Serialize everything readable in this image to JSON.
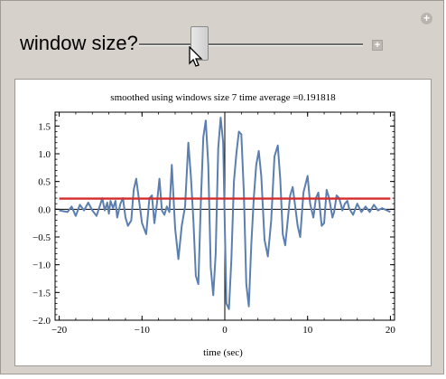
{
  "control": {
    "label": "window size?",
    "slider_fraction": 0.25
  },
  "chart_data": {
    "type": "line",
    "title": "smoothed using windows size 7 time average =0.191818",
    "xlabel": "time (sec)",
    "ylabel": "",
    "xlim": [
      -20.5,
      20.5
    ],
    "ylim": [
      -2.0,
      1.75
    ],
    "xticks": [
      -20,
      -10,
      0,
      10,
      20
    ],
    "xtick_labels": [
      "−20",
      "−10",
      "0",
      "10",
      "20"
    ],
    "yticks": [
      1.5,
      1.0,
      0.5,
      0.0,
      -0.5,
      -1.0,
      -1.5,
      -2.0
    ],
    "ytick_labels": [
      "1.5",
      "1.0",
      "0.5",
      "0.0",
      "−0.5",
      "−1.0",
      "−1.5",
      "−2.0"
    ],
    "average_value": 0.191818,
    "average_color": "#d42b2b",
    "series_color": "#5b7fb0",
    "series": [
      {
        "x": [
          -20,
          -19,
          -18.5,
          -18,
          -17.5,
          -17,
          -16.5,
          -16,
          -15.5,
          -15,
          -14.8,
          -14.5,
          -14.2,
          -14,
          -13.8,
          -13.5,
          -13.2,
          -13,
          -12.6,
          -12.3,
          -12,
          -11.7,
          -11.3,
          -11,
          -10.7,
          -10.3,
          -10,
          -9.5,
          -9.1,
          -8.8,
          -8.5,
          -8.2,
          -7.9,
          -7.6,
          -7.3,
          -7,
          -6.7,
          -6.4,
          -6,
          -5.6,
          -5.2,
          -4.8,
          -4.4,
          -4.1,
          -3.8,
          -3.5,
          -3.2,
          -2.9,
          -2.6,
          -2.3,
          -2,
          -1.7,
          -1.4,
          -1.1,
          -0.8,
          -0.5,
          -0.2,
          0,
          0.2,
          0.5,
          0.8,
          1.1,
          1.4,
          1.7,
          2,
          2.3,
          2.6,
          2.9,
          3.2,
          3.5,
          3.8,
          4.1,
          4.4,
          4.8,
          5.2,
          5.6,
          6,
          6.4,
          6.7,
          7,
          7.3,
          7.6,
          7.9,
          8.2,
          8.5,
          8.8,
          9.1,
          9.5,
          10,
          10.3,
          10.7,
          11,
          11.3,
          11.7,
          12,
          12.3,
          12.6,
          13,
          13.2,
          13.5,
          13.8,
          14,
          14.2,
          14.5,
          14.8,
          15,
          15.5,
          16,
          16.5,
          17,
          17.5,
          18,
          18.5,
          19,
          20
        ],
        "y": [
          -0.02,
          -0.05,
          0.05,
          -0.12,
          0.08,
          -0.02,
          0.12,
          -0.02,
          -0.12,
          0.1,
          0.2,
          -0.02,
          0.12,
          -0.08,
          0.15,
          0.02,
          0.15,
          -0.15,
          0.1,
          0.2,
          -0.15,
          -0.3,
          -0.2,
          0.35,
          0.55,
          0.1,
          -0.25,
          -0.45,
          0.2,
          0.25,
          -0.25,
          0.1,
          0.55,
          -0.02,
          -0.1,
          0.05,
          -0.05,
          0.8,
          -0.35,
          -0.9,
          -0.3,
          0.05,
          1.2,
          0.6,
          -0.2,
          -1.2,
          -1.35,
          0.1,
          1.3,
          1.6,
          0.8,
          -1.05,
          -1.55,
          -0.8,
          1.1,
          1.65,
          1.2,
          -0.3,
          -1.7,
          -1.8,
          -0.9,
          0.5,
          1.0,
          1.4,
          1.35,
          0.3,
          -1.35,
          -1.75,
          -0.65,
          0.2,
          0.8,
          1.05,
          0.6,
          -0.55,
          -0.85,
          -0.2,
          0.95,
          1.15,
          0.55,
          -0.45,
          -0.65,
          -0.2,
          0.25,
          0.4,
          0.05,
          -0.3,
          -0.5,
          0.3,
          0.6,
          0.1,
          -0.15,
          0.2,
          0.3,
          -0.3,
          -0.25,
          0.35,
          0.2,
          -0.15,
          -0.05,
          0.25,
          0.2,
          0.1,
          -0.02,
          0.1,
          0.15,
          0.02,
          -0.1,
          0.1,
          -0.05,
          0.05,
          -0.05,
          0.08,
          -0.02,
          0.02,
          -0.05
        ]
      }
    ]
  }
}
